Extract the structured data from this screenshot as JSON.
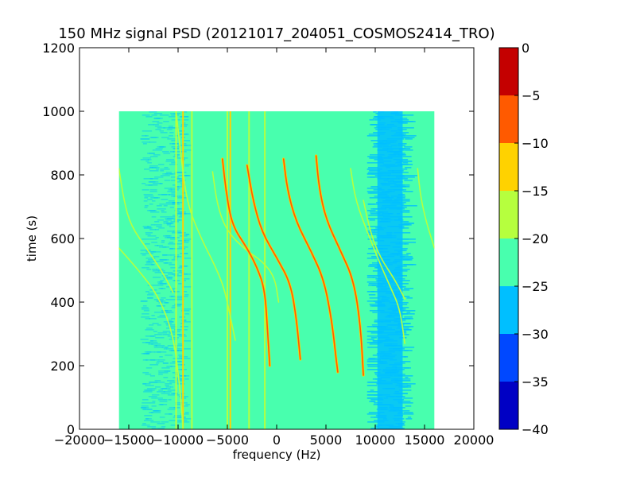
{
  "chart_data": {
    "type": "heatmap",
    "title": "150 MHz signal PSD (20121017_204051_COSMOS2414_TRO)",
    "xlabel": "frequency (Hz)",
    "ylabel": "time (s)",
    "xlim": [
      -20000,
      20000
    ],
    "ylim": [
      0,
      1200
    ],
    "x_ticks": [
      -20000,
      -15000,
      -10000,
      -5000,
      0,
      5000,
      10000,
      15000,
      20000
    ],
    "x_tick_labels": [
      "−20000",
      "−15000",
      "−10000",
      "−5000",
      "0",
      "5000",
      "10000",
      "15000",
      "20000"
    ],
    "y_ticks": [
      0,
      200,
      400,
      600,
      800,
      1000,
      1200
    ],
    "y_tick_labels": [
      "0",
      "200",
      "400",
      "600",
      "800",
      "1000",
      "1200"
    ],
    "data_extent": {
      "x": [
        -16000,
        16000
      ],
      "y": [
        0,
        1000
      ]
    },
    "background_level_db": -22,
    "colorbar": {
      "range": [
        -40,
        0
      ],
      "boundaries": [
        -40,
        -35,
        -30,
        -25,
        -20,
        -15,
        -10,
        -5,
        0
      ],
      "colors": [
        "#0000c4",
        "#0048ff",
        "#00bfff",
        "#48ffae",
        "#b6ff3e",
        "#ffd200",
        "#ff5a00",
        "#c40000"
      ],
      "tick_values": [
        0,
        -5,
        -10,
        -15,
        -20,
        -25,
        -30,
        -35,
        -40
      ],
      "tick_labels": [
        "0",
        "−5",
        "−10",
        "−15",
        "−20",
        "−25",
        "−30",
        "−35",
        "−40"
      ]
    },
    "noise_bands": [
      {
        "x": [
          -13500,
          -9000
        ],
        "level_db": -27,
        "alpha": 0.45
      },
      {
        "x": [
          9500,
          13500
        ],
        "level_db": -28,
        "alpha": 0.8
      }
    ],
    "vertical_lines": [
      {
        "f": -10200,
        "t_range": [
          0,
          1000
        ],
        "level_db": -15
      },
      {
        "f": -9500,
        "t_range": [
          0,
          1000
        ],
        "level_db": -12
      },
      {
        "f": -8600,
        "t_range": [
          0,
          1000
        ],
        "level_db": -15
      },
      {
        "f": -5000,
        "t_range": [
          0,
          1000
        ],
        "level_db": -15
      },
      {
        "f": -4700,
        "t_range": [
          0,
          1000
        ],
        "level_db": -12
      },
      {
        "f": -2800,
        "t_range": [
          0,
          1000
        ],
        "level_db": -16
      },
      {
        "f": -1200,
        "t_range": [
          0,
          1000
        ],
        "level_db": -17
      }
    ],
    "doppler_traces": [
      {
        "points": [
          [
            -16000,
            570
          ],
          [
            -14000,
            500
          ],
          [
            -12000,
            420
          ],
          [
            -10500,
            300
          ],
          [
            -9800,
            130
          ],
          [
            -9500,
            0
          ]
        ],
        "level_db": -15
      },
      {
        "points": [
          [
            -16000,
            820
          ],
          [
            -15500,
            720
          ],
          [
            -14800,
            640
          ],
          [
            -13000,
            560
          ],
          [
            -11500,
            490
          ],
          [
            -10500,
            430
          ]
        ],
        "level_db": -15
      },
      {
        "points": [
          [
            -10200,
            1000
          ],
          [
            -9600,
            830
          ],
          [
            -9000,
            700
          ],
          [
            -7500,
            590
          ],
          [
            -6500,
            530
          ],
          [
            -5500,
            460
          ],
          [
            -5000,
            400
          ],
          [
            -4200,
            280
          ]
        ],
        "level_db": -15
      },
      {
        "points": [
          [
            -6500,
            810
          ],
          [
            -6000,
            700
          ],
          [
            -5000,
            620
          ],
          [
            -3000,
            560
          ],
          [
            -1500,
            530
          ],
          [
            -200,
            480
          ],
          [
            200,
            400
          ]
        ],
        "level_db": -16
      },
      {
        "points": [
          [
            -5500,
            850
          ],
          [
            -5100,
            740
          ],
          [
            -4500,
            640
          ],
          [
            -3000,
            570
          ],
          [
            -2000,
            510
          ],
          [
            -1200,
            440
          ],
          [
            -900,
            300
          ],
          [
            -700,
            200
          ]
        ],
        "level_db": -6
      },
      {
        "points": [
          [
            -3000,
            830
          ],
          [
            -2400,
            720
          ],
          [
            -1500,
            620
          ],
          [
            0,
            540
          ],
          [
            1400,
            460
          ],
          [
            2000,
            350
          ],
          [
            2400,
            220
          ]
        ],
        "level_db": -6
      },
      {
        "points": [
          [
            700,
            850
          ],
          [
            1100,
            750
          ],
          [
            2000,
            650
          ],
          [
            3500,
            560
          ],
          [
            4800,
            470
          ],
          [
            5600,
            340
          ],
          [
            6000,
            230
          ],
          [
            6200,
            180
          ]
        ],
        "level_db": -6
      },
      {
        "points": [
          [
            4000,
            860
          ],
          [
            4300,
            760
          ],
          [
            5000,
            660
          ],
          [
            6500,
            560
          ],
          [
            7800,
            470
          ],
          [
            8500,
            330
          ],
          [
            8800,
            170
          ]
        ],
        "level_db": -6
      },
      {
        "points": [
          [
            7500,
            820
          ],
          [
            8000,
            720
          ],
          [
            9200,
            620
          ],
          [
            10500,
            520
          ],
          [
            11500,
            450
          ],
          [
            12500,
            380
          ],
          [
            13000,
            270
          ]
        ],
        "level_db": -15
      },
      {
        "points": [
          [
            8800,
            720
          ],
          [
            9500,
            620
          ],
          [
            10500,
            540
          ],
          [
            12000,
            470
          ],
          [
            13000,
            410
          ]
        ],
        "level_db": -16
      },
      {
        "points": [
          [
            14300,
            820
          ],
          [
            14600,
            730
          ],
          [
            15200,
            650
          ],
          [
            15700,
            600
          ],
          [
            16000,
            570
          ]
        ],
        "level_db": -15
      }
    ]
  }
}
